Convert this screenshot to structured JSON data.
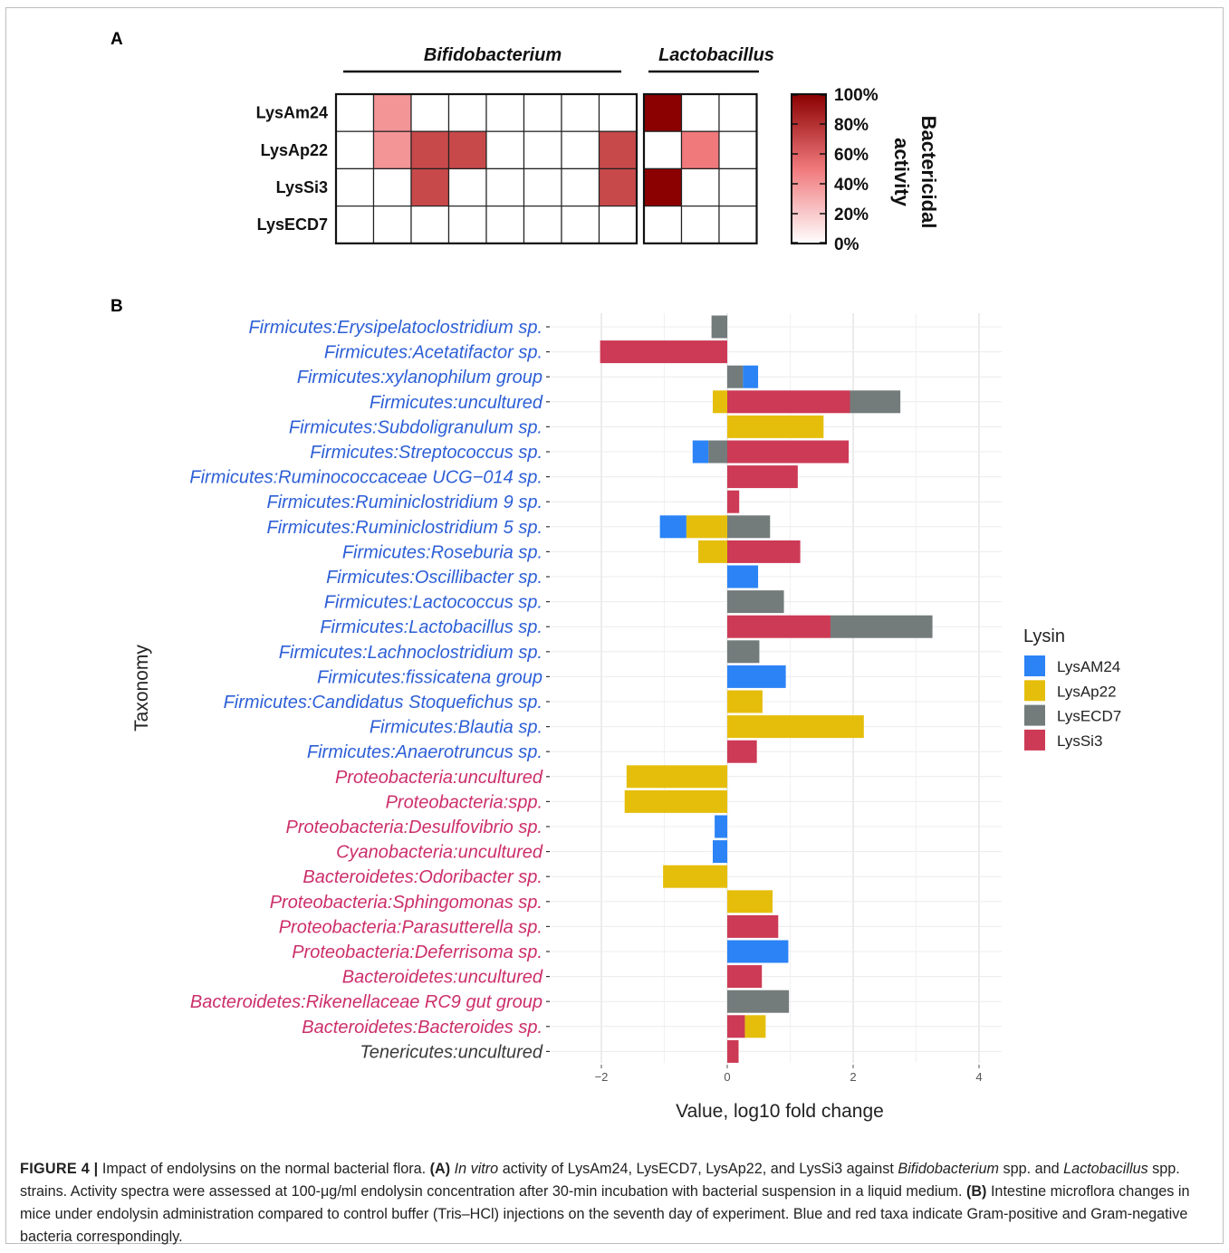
{
  "panel_a": {
    "letter": "A",
    "chart_data": {
      "type": "heatmap",
      "title": "",
      "column_groups": [
        {
          "name": "Bifidobacterium",
          "columns": 8
        },
        {
          "name": "Lactobacillus",
          "columns": 3
        }
      ],
      "rows": [
        "LysAm24",
        "LysAp22",
        "LysSi3",
        "LysECD7"
      ],
      "values": [
        [
          0,
          40,
          0,
          0,
          0,
          0,
          0,
          0,
          100,
          0,
          0
        ],
        [
          0,
          40,
          70,
          70,
          0,
          0,
          0,
          70,
          0,
          50,
          0
        ],
        [
          0,
          0,
          70,
          0,
          0,
          0,
          0,
          70,
          100,
          0,
          0
        ],
        [
          0,
          0,
          0,
          0,
          0,
          0,
          0,
          0,
          0,
          0,
          0
        ]
      ],
      "colorbar": {
        "title": "Bactericidal activity",
        "ticks": [
          "100%",
          "80%",
          "60%",
          "40%",
          "20%",
          "0%"
        ],
        "range": [
          0,
          100
        ],
        "low_color": "#ffffff",
        "high_color": "#8b0000"
      }
    }
  },
  "panel_b": {
    "letter": "B",
    "chart_data": {
      "type": "bar",
      "orientation": "horizontal",
      "stacked": true,
      "title": "",
      "xlabel": "Value, log10 fold change",
      "ylabel": "Taxonomy",
      "xlim": [
        -2.2,
        4.3
      ],
      "xticks": [
        "-2",
        "0",
        "2",
        "4"
      ],
      "grid": true,
      "legend": {
        "title": "Lysin",
        "placement": "right",
        "entries": [
          {
            "name": "LysAM24",
            "color": "#2b83f6"
          },
          {
            "name": "LysAp22",
            "color": "#e5be0c"
          },
          {
            "name": "LysECD7",
            "color": "#737b7b"
          },
          {
            "name": "LysSi3",
            "color": "#cc3a55"
          }
        ]
      },
      "gram_colors": {
        "positive": "#2d5fd6",
        "negative": "#cc2f6a",
        "other": "#3a3a3a"
      },
      "categories": [
        {
          "label": "Firmicutes:Erysipelatoclostridium sp.",
          "gram": "positive",
          "values": {
            "LysECD7": -0.25
          }
        },
        {
          "label": "Firmicutes:Acetatifactor sp.",
          "gram": "positive",
          "values": {
            "LysSi3": -2.02
          }
        },
        {
          "label": "Firmicutes:xylanophilum group",
          "gram": "positive",
          "values": {
            "LysECD7": 0.25,
            "LysAM24": 0.24
          }
        },
        {
          "label": "Firmicutes:uncultured",
          "gram": "positive",
          "values": {
            "LysAp22": -0.23,
            "LysSi3": 1.95,
            "LysECD7": 0.8
          }
        },
        {
          "label": "Firmicutes:Subdoligranulum sp.",
          "gram": "positive",
          "values": {
            "LysAp22": 1.53
          }
        },
        {
          "label": "Firmicutes:Streptococcus sp.",
          "gram": "positive",
          "values": {
            "LysECD7": -0.3,
            "LysAM24": -0.25,
            "LysSi3": 1.93
          }
        },
        {
          "label": "Firmicutes:Ruminococcaceae UCG−014 sp.",
          "gram": "positive",
          "values": {
            "LysSi3": 1.12
          }
        },
        {
          "label": "Firmicutes:Ruminiclostridium 9 sp.",
          "gram": "positive",
          "values": {
            "LysSi3": 0.19
          }
        },
        {
          "label": "Firmicutes:Ruminiclostridium 5 sp.",
          "gram": "positive",
          "values": {
            "LysAp22": -0.65,
            "LysAM24": -0.42,
            "LysECD7": 0.68
          }
        },
        {
          "label": "Firmicutes:Roseburia sp.",
          "gram": "positive",
          "values": {
            "LysAp22": -0.46,
            "LysSi3": 1.16
          }
        },
        {
          "label": "Firmicutes:Oscillibacter sp.",
          "gram": "positive",
          "values": {
            "LysAM24": 0.49
          }
        },
        {
          "label": "Firmicutes:Lactococcus sp.",
          "gram": "positive",
          "values": {
            "LysECD7": 0.9
          }
        },
        {
          "label": "Firmicutes:Lactobacillus sp.",
          "gram": "positive",
          "values": {
            "LysSi3": 1.64,
            "LysECD7": 1.62
          }
        },
        {
          "label": "Firmicutes:Lachnoclostridium sp.",
          "gram": "positive",
          "values": {
            "LysECD7": 0.51
          }
        },
        {
          "label": "Firmicutes:fissicatena group",
          "gram": "positive",
          "values": {
            "LysAM24": 0.93
          }
        },
        {
          "label": "Firmicutes:Candidatus Stoquefichus sp.",
          "gram": "positive",
          "values": {
            "LysAp22": 0.56
          }
        },
        {
          "label": "Firmicutes:Blautia sp.",
          "gram": "positive",
          "values": {
            "LysAp22": 2.17
          }
        },
        {
          "label": "Firmicutes:Anaerotruncus sp.",
          "gram": "positive",
          "values": {
            "LysSi3": 0.47
          }
        },
        {
          "label": "Proteobacteria:uncultured",
          "gram": "negative",
          "values": {
            "LysAp22": -1.6
          }
        },
        {
          "label": "Proteobacteria:spp.",
          "gram": "negative",
          "values": {
            "LysAp22": -1.63
          }
        },
        {
          "label": "Proteobacteria:Desulfovibrio sp.",
          "gram": "negative",
          "values": {
            "LysAM24": -0.2
          }
        },
        {
          "label": "Cyanobacteria:uncultured",
          "gram": "negative",
          "values": {
            "LysAM24": -0.23
          }
        },
        {
          "label": "Bacteroidetes:Odoribacter sp.",
          "gram": "negative",
          "values": {
            "LysAp22": -1.02
          }
        },
        {
          "label": "Proteobacteria:Sphingomonas sp.",
          "gram": "negative",
          "values": {
            "LysAp22": 0.72
          }
        },
        {
          "label": "Proteobacteria:Parasutterella sp.",
          "gram": "negative",
          "values": {
            "LysSi3": 0.81
          }
        },
        {
          "label": "Proteobacteria:Deferrisoma sp.",
          "gram": "negative",
          "values": {
            "LysAM24": 0.97
          }
        },
        {
          "label": "Bacteroidetes:uncultured",
          "gram": "negative",
          "values": {
            "LysSi3": 0.55
          }
        },
        {
          "label": "Bacteroidetes:Rikenellaceae RC9 gut group",
          "gram": "negative",
          "values": {
            "LysECD7": 0.98
          }
        },
        {
          "label": "Bacteroidetes:Bacteroides sp.",
          "gram": "negative",
          "values": {
            "LysSi3": 0.28,
            "LysAp22": 0.33
          }
        },
        {
          "label": "Tenericutes:uncultured",
          "gram": "other",
          "values": {
            "LysSi3": 0.18
          }
        }
      ]
    }
  },
  "caption": {
    "figure_label": "FIGURE 4",
    "separator": "|",
    "title": "Impact of endolysins on the normal bacterial flora.",
    "a_label": "(A)",
    "a_italic": "In vitro",
    "a_text_1": "activity of LysAm24, LysECD7, LysAp22, and LysSi3 against",
    "a_italic_2": "Bifidobacterium",
    "a_text_2": "spp. and",
    "a_italic_3": "Lactobacillus",
    "a_text_3": "spp. strains. Activity spectra were assessed at 100-μg/ml endolysin concentration after 30-min incubation with bacterial suspension in a liquid medium.",
    "b_label": "(B)",
    "b_text": "Intestine microflora changes in mice under endolysin administration compared to control buffer (Tris–HCl) injections on the seventh day of experiment. Blue and red taxa indicate Gram-positive and Gram-negative bacteria correspondingly."
  }
}
